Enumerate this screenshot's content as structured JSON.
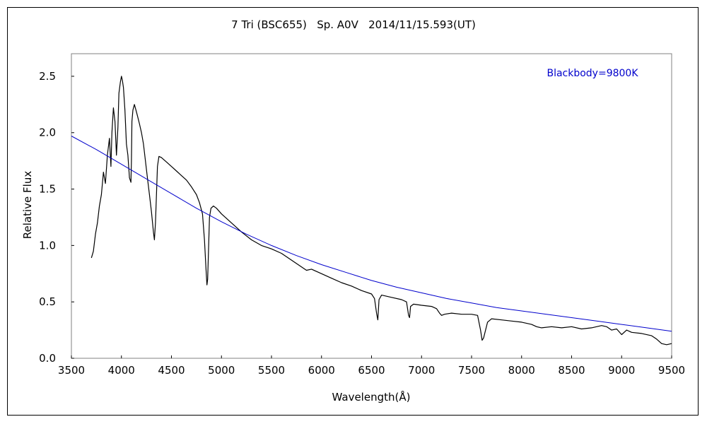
{
  "chart_data": {
    "type": "line",
    "title": "7 Tri (BSC655)   Sp. A0V   2014/11/15.593(UT)",
    "xlabel": "Wavelength(Å)",
    "ylabel": "Relative Flux",
    "xlim": [
      3500,
      9500
    ],
    "ylim": [
      0,
      2.7
    ],
    "x_ticks": [
      3500,
      4000,
      4500,
      5000,
      5500,
      6000,
      6500,
      7000,
      7500,
      8000,
      8500,
      9000,
      9500
    ],
    "y_ticks": [
      0.0,
      0.5,
      1.0,
      1.5,
      2.0,
      2.5
    ],
    "x_tick_labels": [
      "3500",
      "4000",
      "4500",
      "5000",
      "5500",
      "6000",
      "6500",
      "7000",
      "7500",
      "8000",
      "8500",
      "9000",
      "9500"
    ],
    "y_tick_labels": [
      "0.0",
      "0.5",
      "1.0",
      "1.5",
      "2.0",
      "2.5"
    ],
    "grid": false,
    "legend_position": "top-right",
    "series": [
      {
        "name": "",
        "color": "#000000",
        "x": [
          3700,
          3720,
          3740,
          3760,
          3780,
          3800,
          3820,
          3840,
          3860,
          3880,
          3895,
          3905,
          3920,
          3935,
          3950,
          3965,
          3975,
          3990,
          4000,
          4010,
          4020,
          4035,
          4050,
          4065,
          4080,
          4095,
          4100,
          4105,
          4115,
          4130,
          4145,
          4160,
          4180,
          4200,
          4220,
          4240,
          4260,
          4280,
          4300,
          4320,
          4330,
          4340,
          4350,
          4360,
          4375,
          4400,
          4450,
          4500,
          4550,
          4600,
          4650,
          4700,
          4750,
          4780,
          4810,
          4830,
          4845,
          4855,
          4862,
          4870,
          4880,
          4895,
          4920,
          4950,
          5000,
          5100,
          5200,
          5300,
          5400,
          5500,
          5600,
          5700,
          5800,
          5850,
          5900,
          6000,
          6100,
          6200,
          6300,
          6400,
          6500,
          6530,
          6550,
          6563,
          6575,
          6600,
          6700,
          6800,
          6850,
          6870,
          6880,
          6890,
          6920,
          7000,
          7100,
          7150,
          7180,
          7200,
          7230,
          7300,
          7400,
          7500,
          7560,
          7590,
          7605,
          7620,
          7660,
          7700,
          7800,
          7900,
          8000,
          8100,
          8150,
          8200,
          8300,
          8400,
          8500,
          8600,
          8700,
          8800,
          8850,
          8900,
          8950,
          9000,
          9050,
          9100,
          9200,
          9300,
          9350,
          9400,
          9450,
          9500
        ],
        "values": [
          0.89,
          0.95,
          1.1,
          1.2,
          1.35,
          1.45,
          1.65,
          1.55,
          1.8,
          1.95,
          1.7,
          2.0,
          2.22,
          2.1,
          1.8,
          2.05,
          2.35,
          2.45,
          2.5,
          2.46,
          2.4,
          2.2,
          1.9,
          1.8,
          1.6,
          1.56,
          1.75,
          2.1,
          2.2,
          2.25,
          2.2,
          2.15,
          2.08,
          2.0,
          1.9,
          1.75,
          1.6,
          1.45,
          1.3,
          1.12,
          1.05,
          1.2,
          1.45,
          1.7,
          1.79,
          1.78,
          1.74,
          1.7,
          1.66,
          1.62,
          1.58,
          1.52,
          1.45,
          1.38,
          1.28,
          1.05,
          0.8,
          0.65,
          0.7,
          0.95,
          1.25,
          1.33,
          1.35,
          1.33,
          1.28,
          1.2,
          1.12,
          1.05,
          1.0,
          0.97,
          0.93,
          0.87,
          0.81,
          0.78,
          0.79,
          0.75,
          0.71,
          0.67,
          0.64,
          0.6,
          0.57,
          0.53,
          0.4,
          0.34,
          0.52,
          0.56,
          0.54,
          0.52,
          0.5,
          0.38,
          0.36,
          0.46,
          0.48,
          0.47,
          0.46,
          0.44,
          0.4,
          0.38,
          0.39,
          0.4,
          0.39,
          0.39,
          0.38,
          0.25,
          0.16,
          0.18,
          0.32,
          0.35,
          0.34,
          0.33,
          0.32,
          0.3,
          0.28,
          0.27,
          0.28,
          0.27,
          0.28,
          0.26,
          0.27,
          0.29,
          0.28,
          0.25,
          0.26,
          0.21,
          0.25,
          0.23,
          0.22,
          0.2,
          0.17,
          0.13,
          0.12,
          0.13
        ]
      },
      {
        "name": "Blackbody=9800K",
        "color": "#0000cc",
        "x": [
          3500,
          3750,
          4000,
          4250,
          4500,
          4750,
          5000,
          5250,
          5500,
          5750,
          6000,
          6250,
          6500,
          6750,
          7000,
          7250,
          7500,
          7750,
          8000,
          8250,
          8500,
          8750,
          9000,
          9250,
          9500
        ],
        "values": [
          1.97,
          1.85,
          1.72,
          1.59,
          1.46,
          1.33,
          1.21,
          1.1,
          1.0,
          0.91,
          0.83,
          0.76,
          0.69,
          0.63,
          0.58,
          0.53,
          0.49,
          0.45,
          0.42,
          0.39,
          0.36,
          0.33,
          0.3,
          0.27,
          0.24
        ]
      }
    ]
  }
}
